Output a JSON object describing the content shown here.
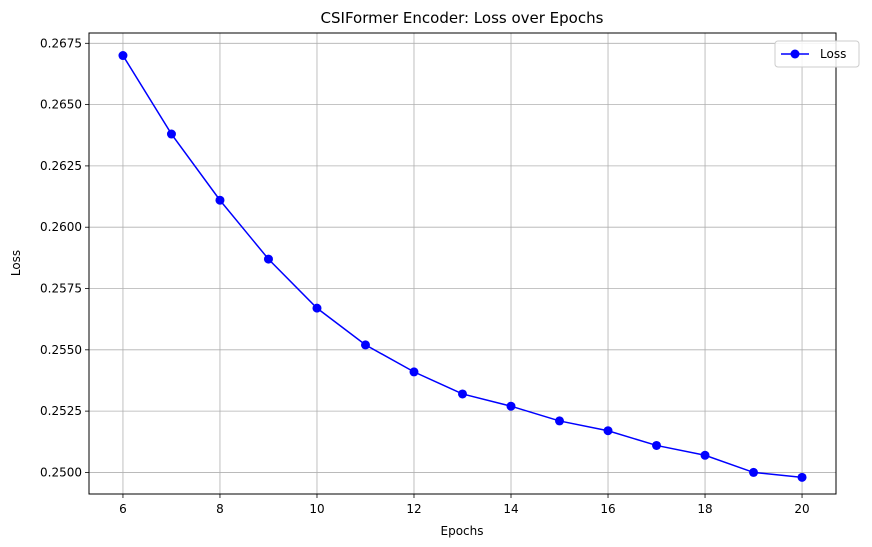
{
  "chart_data": {
    "type": "line",
    "title": "CSIFormer Encoder: Loss over Epochs",
    "xlabel": "Epochs",
    "ylabel": "Loss",
    "xlim": [
      5.3,
      20.7
    ],
    "ylim": [
      0.24912,
      0.26792
    ],
    "xticks": [
      6,
      8,
      10,
      12,
      14,
      16,
      18,
      20
    ],
    "xtick_labels": [
      "6",
      "8",
      "10",
      "12",
      "14",
      "16",
      "18",
      "20"
    ],
    "yticks": [
      0.25,
      0.2525,
      0.255,
      0.2575,
      0.26,
      0.2625,
      0.265,
      0.2675
    ],
    "ytick_labels": [
      "0.2500",
      "0.2525",
      "0.2550",
      "0.2575",
      "0.2600",
      "0.2625",
      "0.2650",
      "0.2675"
    ],
    "grid": true,
    "legend": "top-right",
    "series": [
      {
        "name": "Loss",
        "color": "#0000ff",
        "marker": "circle",
        "x": [
          6,
          7,
          8,
          9,
          10,
          11,
          12,
          13,
          14,
          15,
          16,
          17,
          18,
          19,
          20
        ],
        "y": [
          0.267,
          0.2638,
          0.2611,
          0.2587,
          0.2567,
          0.2552,
          0.2541,
          0.2532,
          0.2527,
          0.2521,
          0.2517,
          0.2511,
          0.2507,
          0.25,
          0.2498
        ]
      }
    ]
  }
}
